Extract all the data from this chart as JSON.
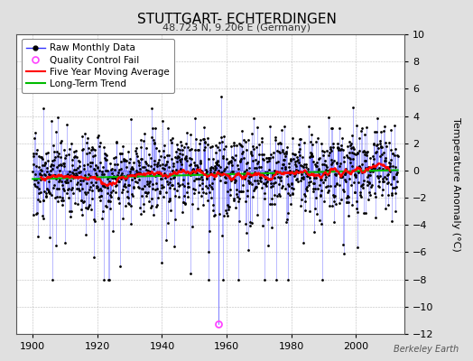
{
  "title": "STUTTGART- ECHTERDINGEN",
  "subtitle": "48.723 N, 9.206 E (Germany)",
  "ylabel": "Temperature Anomaly (°C)",
  "watermark": "Berkeley Earth",
  "ylim": [
    -12,
    10
  ],
  "xlim": [
    1895,
    2015
  ],
  "xticks": [
    1900,
    1920,
    1940,
    1960,
    1980,
    2000
  ],
  "yticks": [
    -12,
    -10,
    -8,
    -6,
    -4,
    -2,
    0,
    2,
    4,
    6,
    8,
    10
  ],
  "start_year": 1900,
  "end_year": 2012,
  "seed": 17,
  "raw_color": "#3333FF",
  "dot_color": "#000000",
  "qc_color": "#FF44FF",
  "trend_color": "#FF0000",
  "longterm_color": "#00BB00",
  "background_color": "#E0E0E0",
  "plot_bg_color": "#FFFFFF",
  "title_fontsize": 11,
  "subtitle_fontsize": 8,
  "legend_fontsize": 7.5,
  "axis_fontsize": 8,
  "qc_fail_year": 1957,
  "qc_fail_value": -11.3,
  "lt_slope": 0.006,
  "lt_intercept_year": 1955,
  "lt_intercept_value": -0.15
}
